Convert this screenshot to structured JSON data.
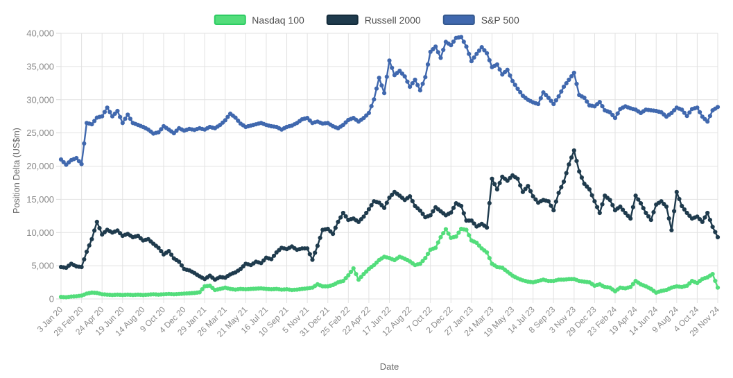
{
  "chart_data": {
    "type": "line",
    "title": "",
    "xlabel": "Date",
    "ylabel": "Position Delta (US$m)",
    "ylim": [
      0,
      40000
    ],
    "grid": true,
    "legend_position": "top-center",
    "marker_style": "dot",
    "y_ticks": [
      0,
      5000,
      10000,
      15000,
      20000,
      25000,
      30000,
      35000,
      40000
    ],
    "y_tick_labels": [
      "0",
      "5,000",
      "10,000",
      "15,000",
      "20,000",
      "25,000",
      "30,000",
      "35,000",
      "40,000"
    ],
    "x_tick_labels": [
      "3 Jan 20",
      "28 Feb 20",
      "24 Apr 20",
      "19 Jun 20",
      "14 Aug 20",
      "9 Oct 20",
      "4 Dec 20",
      "29 Jan 21",
      "26 Mar 21",
      "21 May 21",
      "16 Jul 21",
      "10 Sep 21",
      "5 Nov 21",
      "31 Dec 21",
      "25 Feb 22",
      "22 Apr 22",
      "17 Jun 22",
      "12 Aug 22",
      "7 Oct 22",
      "2 Dec 22",
      "27 Jan 23",
      "24 Mar 23",
      "19 May 23",
      "14 Jul 23",
      "8 Sep 23",
      "3 Nov 23",
      "29 Dec 23",
      "23 Feb 24",
      "19 Apr 24",
      "14 Jun 24",
      "9 Aug 24",
      "4 Oct 24",
      "29 Nov 24"
    ],
    "x_tick_every": 4,
    "axis_color": "#8a8a8a",
    "grid_color": "#e2e2e2",
    "series": [
      {
        "name": "Nasdaq 100",
        "color": "#53dd7b",
        "border_color": "#2ecc63",
        "values": [
          300,
          250,
          350,
          400,
          500,
          800,
          950,
          900,
          700,
          650,
          600,
          650,
          600,
          650,
          600,
          650,
          600,
          650,
          700,
          650,
          700,
          750,
          700,
          750,
          800,
          850,
          900,
          1000,
          1900,
          2000,
          1350,
          1500,
          1700,
          1500,
          1400,
          1500,
          1450,
          1500,
          1550,
          1600,
          1500,
          1450,
          1500,
          1400,
          1450,
          1350,
          1400,
          1500,
          1600,
          1700,
          2200,
          1900,
          1900,
          2100,
          2500,
          2700,
          3550,
          4600,
          2900,
          3750,
          4500,
          5100,
          5850,
          6350,
          6150,
          5850,
          6350,
          6050,
          5650,
          5100,
          5300,
          6150,
          7400,
          7700,
          9300,
          10500,
          9200,
          9400,
          10550,
          10400,
          8800,
          8450,
          7600,
          7000,
          5300,
          4800,
          4700,
          4100,
          3500,
          3100,
          2800,
          2600,
          2500,
          2700,
          2900,
          2700,
          2700,
          2900,
          2900,
          3000,
          3000,
          2700,
          2600,
          2500,
          2000,
          2200,
          1800,
          1700,
          1150,
          1700,
          1600,
          1800,
          2700,
          2200,
          1900,
          1500,
          950,
          1200,
          1350,
          1700,
          1900,
          1800,
          2000,
          2700,
          2400,
          3000,
          3250,
          3750,
          1700
        ]
      },
      {
        "name": "Russell 2000",
        "color": "#1f3b4d",
        "border_color": "#142c3b",
        "values": [
          4800,
          4700,
          5300,
          4900,
          4800,
          7100,
          9000,
          11600,
          9700,
          10400,
          10000,
          10300,
          9500,
          9800,
          9300,
          9500,
          8800,
          9000,
          8300,
          7700,
          6700,
          7200,
          6100,
          5600,
          4500,
          4300,
          3900,
          3400,
          3000,
          3500,
          2900,
          3300,
          3200,
          3700,
          4000,
          4500,
          5300,
          5100,
          5600,
          5400,
          6200,
          6000,
          7000,
          7700,
          7500,
          7900,
          7400,
          7600,
          7600,
          5900,
          8000,
          10400,
          10550,
          9800,
          11600,
          12950,
          11900,
          12100,
          11600,
          12400,
          13500,
          14700,
          14500,
          13700,
          15250,
          16100,
          15550,
          14900,
          15450,
          14000,
          13300,
          12300,
          12600,
          13800,
          13200,
          12600,
          13000,
          14400,
          14000,
          11800,
          11800,
          10900,
          11300,
          10750,
          18100,
          16500,
          18400,
          17800,
          18600,
          18100,
          16100,
          17000,
          15450,
          14500,
          14900,
          14700,
          13350,
          15970,
          17650,
          20250,
          22350,
          19200,
          17350,
          16500,
          14700,
          12950,
          15550,
          14900,
          13350,
          13900,
          12950,
          12100,
          15550,
          14400,
          12950,
          11900,
          14200,
          14700,
          13900,
          10350,
          16100,
          14000,
          12950,
          12100,
          12400,
          11600,
          12950,
          10850,
          9300
        ]
      },
      {
        "name": "S&P 500",
        "color": "#4068ae",
        "border_color": "#35598f",
        "values": [
          21000,
          20200,
          20900,
          21200,
          20300,
          26500,
          26300,
          27300,
          27500,
          28800,
          27500,
          28300,
          26500,
          27750,
          26500,
          26200,
          25900,
          25500,
          24900,
          25100,
          26000,
          25500,
          24950,
          25700,
          25350,
          25600,
          25450,
          25700,
          25500,
          25900,
          25700,
          26200,
          26900,
          27900,
          27300,
          26400,
          25900,
          26100,
          26300,
          26500,
          26200,
          26000,
          25900,
          25500,
          25900,
          26100,
          26500,
          27050,
          27250,
          26500,
          26700,
          26400,
          26500,
          26000,
          25700,
          26200,
          26950,
          27250,
          26700,
          27250,
          28000,
          30050,
          33300,
          31000,
          35900,
          33700,
          34350,
          33500,
          31950,
          33000,
          31400,
          33400,
          37200,
          38000,
          36300,
          38700,
          38200,
          39300,
          39450,
          38000,
          35800,
          36900,
          37900,
          37000,
          34900,
          35300,
          33800,
          34500,
          32800,
          31650,
          30600,
          30000,
          29600,
          29350,
          31100,
          30300,
          29350,
          30500,
          31950,
          33000,
          34050,
          30700,
          30300,
          29150,
          29000,
          29650,
          28400,
          28100,
          27250,
          28600,
          29000,
          28700,
          28500,
          28000,
          28500,
          28400,
          28300,
          28100,
          27450,
          28000,
          28800,
          28500,
          27550,
          28600,
          28800,
          27450,
          26700,
          28400,
          28900
        ]
      }
    ]
  }
}
